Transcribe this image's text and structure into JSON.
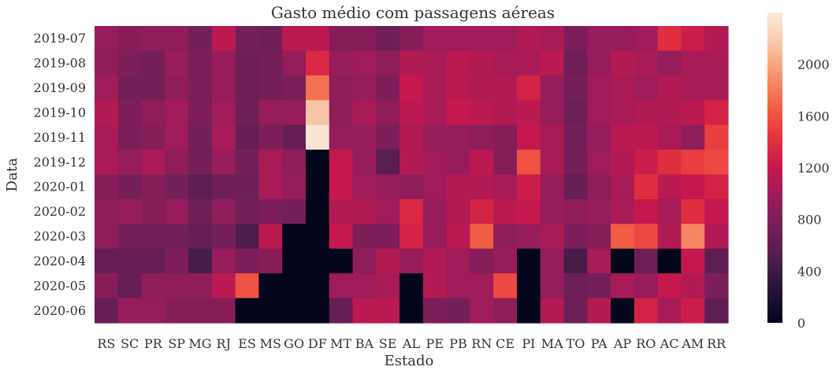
{
  "chart_data": {
    "type": "heatmap",
    "title": "Gasto médio com passagens aéreas",
    "xlabel": "Estado",
    "ylabel": "Data",
    "x": [
      "RS",
      "SC",
      "PR",
      "SP",
      "MG",
      "RJ",
      "ES",
      "MS",
      "GO",
      "DF",
      "MT",
      "BA",
      "SE",
      "AL",
      "PE",
      "PB",
      "RN",
      "CE",
      "PI",
      "MA",
      "TO",
      "PA",
      "AP",
      "RO",
      "AC",
      "AM",
      "RR"
    ],
    "y": [
      "2019-07",
      "2019-08",
      "2019-09",
      "2019-10",
      "2019-11",
      "2019-12",
      "2020-01",
      "2020-02",
      "2020-03",
      "2020-04",
      "2020-05",
      "2020-06"
    ],
    "values": [
      [
        950,
        850,
        900,
        900,
        750,
        1150,
        750,
        700,
        1150,
        1150,
        850,
        850,
        700,
        850,
        1000,
        1000,
        1000,
        1000,
        1100,
        1050,
        800,
        950,
        950,
        1000,
        1400,
        1250,
        1100
      ],
      [
        900,
        800,
        750,
        950,
        800,
        950,
        700,
        750,
        950,
        1350,
        950,
        1000,
        900,
        1100,
        1050,
        1150,
        1100,
        1050,
        1050,
        1150,
        700,
        950,
        1100,
        1050,
        950,
        1050,
        1050
      ],
      [
        1000,
        750,
        750,
        900,
        800,
        950,
        700,
        750,
        800,
        1750,
        900,
        950,
        800,
        1200,
        1050,
        1150,
        1100,
        1100,
        1300,
        950,
        750,
        1000,
        1050,
        1000,
        1100,
        1050,
        1050
      ],
      [
        1100,
        800,
        900,
        1000,
        800,
        1000,
        700,
        950,
        950,
        2150,
        900,
        1050,
        900,
        1150,
        1050,
        1200,
        1150,
        1100,
        1150,
        950,
        700,
        1000,
        1050,
        1100,
        1100,
        1150,
        1300
      ],
      [
        1050,
        800,
        850,
        1000,
        750,
        1050,
        650,
        800,
        650,
        2350,
        950,
        950,
        800,
        1100,
        950,
        950,
        900,
        850,
        1200,
        1050,
        750,
        950,
        1150,
        1150,
        1050,
        900,
        1500
      ],
      [
        1050,
        950,
        1050,
        900,
        750,
        950,
        750,
        1050,
        900,
        0,
        1200,
        950,
        550,
        1100,
        1000,
        950,
        1150,
        850,
        1600,
        1050,
        750,
        1000,
        1100,
        1250,
        1400,
        1500,
        1550
      ],
      [
        850,
        750,
        850,
        750,
        600,
        700,
        700,
        1050,
        950,
        0,
        1200,
        1000,
        950,
        900,
        1000,
        1100,
        1100,
        1050,
        1250,
        950,
        650,
        900,
        1050,
        1400,
        1150,
        1200,
        1300
      ],
      [
        900,
        950,
        850,
        950,
        700,
        900,
        750,
        800,
        750,
        0,
        1100,
        1100,
        1000,
        1350,
        950,
        1100,
        1300,
        1150,
        1200,
        950,
        900,
        950,
        1050,
        1200,
        1050,
        1400,
        1200
      ],
      [
        900,
        750,
        750,
        750,
        650,
        750,
        500,
        1150,
        0,
        0,
        1200,
        800,
        800,
        1300,
        950,
        1150,
        1650,
        900,
        950,
        1050,
        800,
        850,
        1650,
        1550,
        1100,
        1850,
        1100
      ],
      [
        650,
        650,
        650,
        800,
        450,
        950,
        800,
        850,
        0,
        0,
        0,
        900,
        1100,
        950,
        1100,
        1000,
        850,
        950,
        0,
        950,
        450,
        1050,
        0,
        700,
        0,
        1200,
        600
      ],
      [
        850,
        650,
        900,
        900,
        900,
        1150,
        1600,
        0,
        0,
        0,
        1000,
        1000,
        1050,
        0,
        1100,
        1000,
        1000,
        1550,
        0,
        950,
        700,
        750,
        1050,
        950,
        1200,
        1100,
        800
      ],
      [
        650,
        950,
        950,
        850,
        850,
        850,
        0,
        0,
        0,
        0,
        650,
        1150,
        1150,
        0,
        800,
        750,
        1000,
        900,
        0,
        1100,
        700,
        1100,
        0,
        1300,
        1050,
        1250,
        600
      ]
    ],
    "colorbar": {
      "min": 0,
      "max": 2400,
      "ticks": [
        0,
        400,
        800,
        1200,
        1600,
        2000
      ]
    },
    "colormap": "rocket",
    "colors": {
      "background": "#ffffff",
      "text": "#333333"
    }
  }
}
